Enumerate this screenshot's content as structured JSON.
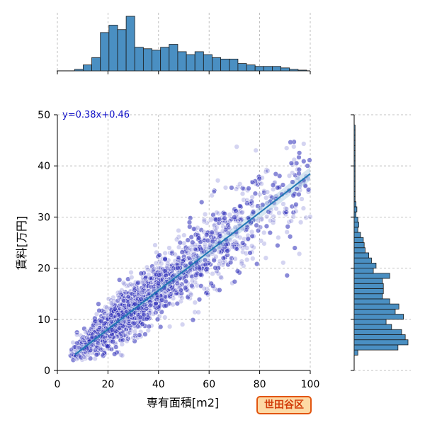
{
  "chart_data": {
    "type": "scatter",
    "xlabel": "専有面積[m2]",
    "ylabel": "賃料[万円]",
    "xlim": [
      0,
      100
    ],
    "ylim": [
      0,
      50
    ],
    "x_ticks": [
      "0",
      "20",
      "40",
      "60",
      "80",
      "100"
    ],
    "y_ticks": [
      "0",
      "10",
      "20",
      "30",
      "40",
      "50"
    ],
    "grid": true,
    "point_color": "#2a2ab8",
    "line_color": "#1f77b4",
    "hist_color": "#4a8fc2",
    "badge_label": "世田谷区",
    "regression": {
      "equation": "y=0.38x+0.46",
      "slope": 0.38,
      "intercept": 0.46,
      "x_range": [
        7,
        100
      ]
    },
    "scatter_density": [
      {
        "x": 10,
        "y": 5,
        "sd_x": 3,
        "sd_y": 1.5,
        "n": 120
      },
      {
        "x": 18,
        "y": 8,
        "sd_x": 4,
        "sd_y": 2.5,
        "n": 300
      },
      {
        "x": 25,
        "y": 11,
        "sd_x": 4,
        "sd_y": 3,
        "n": 420
      },
      {
        "x": 32,
        "y": 14,
        "sd_x": 5,
        "sd_y": 3.5,
        "n": 380
      },
      {
        "x": 42,
        "y": 17,
        "sd_x": 6,
        "sd_y": 4,
        "n": 320
      },
      {
        "x": 55,
        "y": 22,
        "sd_x": 7,
        "sd_y": 5,
        "n": 240
      },
      {
        "x": 68,
        "y": 27,
        "sd_x": 8,
        "sd_y": 6,
        "n": 170
      },
      {
        "x": 82,
        "y": 31,
        "sd_x": 8,
        "sd_y": 7,
        "n": 110
      },
      {
        "x": 95,
        "y": 35,
        "sd_x": 5,
        "sd_y": 8,
        "n": 60
      }
    ],
    "x_hist": {
      "bin_width": 3.4,
      "bin_start": 0,
      "counts": [
        0,
        0,
        1,
        4,
        9,
        26,
        31,
        28,
        37,
        16,
        15,
        14,
        16,
        18,
        13,
        11,
        13,
        11,
        9,
        8,
        8,
        5,
        4,
        3,
        3,
        3,
        2,
        1,
        0.5
      ]
    },
    "y_hist": {
      "bin_width": 1,
      "bin_start": 3,
      "counts": [
        4,
        48,
        59,
        56,
        52,
        41,
        35,
        54,
        45,
        49,
        39,
        31,
        32,
        32,
        31,
        39,
        21,
        24,
        19,
        16,
        12,
        11,
        10,
        7,
        4,
        5,
        4,
        2,
        3,
        2,
        1,
        1,
        1,
        1,
        1,
        1,
        1,
        1,
        1,
        1,
        1,
        1,
        1,
        1,
        1
      ]
    }
  }
}
